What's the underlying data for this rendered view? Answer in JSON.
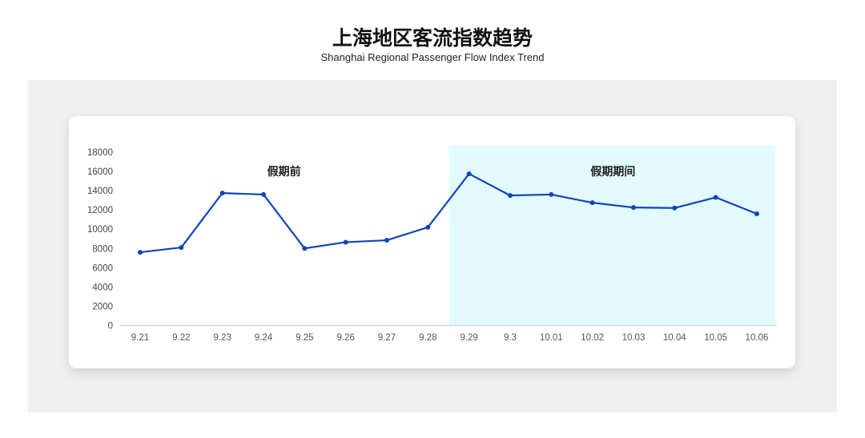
{
  "header": {
    "title": "上海地区客流指数趋势",
    "subtitle": "Shanghai Regional Passenger Flow Index Trend"
  },
  "chart_data": {
    "type": "line",
    "title": "上海地区客流指数趋势",
    "subtitle": "Shanghai Regional Passenger Flow Index Trend",
    "categories": [
      "9.21",
      "9.22",
      "9.23",
      "9.24",
      "9.25",
      "9.26",
      "9.27",
      "9.28",
      "9.29",
      "9.3",
      "10.01",
      "10.02",
      "10.03",
      "10.04",
      "10.05",
      "10.06"
    ],
    "values": [
      7600,
      8100,
      13750,
      13600,
      8000,
      8650,
      8850,
      10200,
      15750,
      13500,
      13600,
      12750,
      12250,
      12200,
      13300,
      11600
    ],
    "ylim": [
      0,
      18000
    ],
    "yticks": [
      0,
      2000,
      4000,
      6000,
      8000,
      10000,
      12000,
      14000,
      16000,
      18000
    ],
    "grid": false,
    "annotations": [
      {
        "text": "假期前",
        "range": [
          "9.21",
          "9.28"
        ]
      },
      {
        "text": "假期期间",
        "range": [
          "9.29",
          "10.06"
        ],
        "highlight": true
      }
    ],
    "colors": {
      "line": "#1244b8",
      "highlight": "#e3fafd",
      "panel": "#f0f0f0"
    }
  }
}
